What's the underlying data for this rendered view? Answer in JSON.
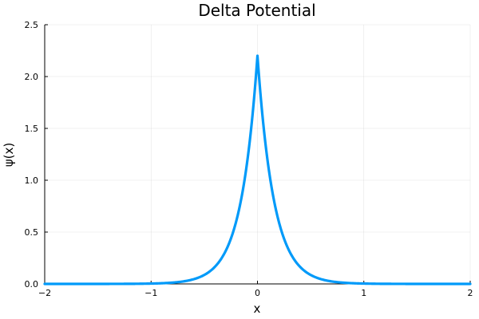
{
  "chart_data": {
    "type": "line",
    "title": "Delta Potential",
    "xlabel": "x",
    "ylabel": "ψ(x)",
    "xlim": [
      -2,
      2
    ],
    "ylim": [
      0,
      2.5
    ],
    "grid": true,
    "legend": "none",
    "x_ticks": [
      -2,
      -1,
      0,
      1,
      2
    ],
    "x_tick_labels": [
      "−2",
      "−1",
      "0",
      "1",
      "2"
    ],
    "y_ticks": [
      0,
      0.5,
      1,
      1.5,
      2,
      2.5
    ],
    "y_tick_labels": [
      "0.0",
      "0.5",
      "1.0",
      "1.5",
      "2.0",
      "2.5"
    ],
    "series": [
      {
        "color": "#009af9",
        "x": [
          -2.0,
          -1.75,
          -1.5,
          -1.25,
          -1.0,
          -0.9,
          -0.8,
          -0.7,
          -0.6,
          -0.5,
          -0.4,
          -0.3,
          -0.25,
          -0.2,
          -0.15,
          -0.1,
          -0.05,
          0.0,
          0.05,
          0.1,
          0.15,
          0.2,
          0.25,
          0.3,
          0.4,
          0.5,
          0.6,
          0.7,
          0.8,
          0.9,
          1.0,
          1.25,
          1.5,
          1.75,
          2.0
        ],
        "y": [
          0.0005,
          0.0011,
          0.0026,
          0.006,
          0.0138,
          0.0199,
          0.0287,
          0.0414,
          0.0599,
          0.0865,
          0.1249,
          0.1803,
          0.2165,
          0.2603,
          0.3127,
          0.376,
          0.4518,
          2.2,
          0.4518,
          0.376,
          0.3127,
          0.2603,
          0.2165,
          0.1803,
          0.1249,
          0.0865,
          0.0599,
          0.0414,
          0.0287,
          0.0199,
          0.0138,
          0.006,
          0.0026,
          0.0011,
          0.0005
        ]
      }
    ]
  }
}
